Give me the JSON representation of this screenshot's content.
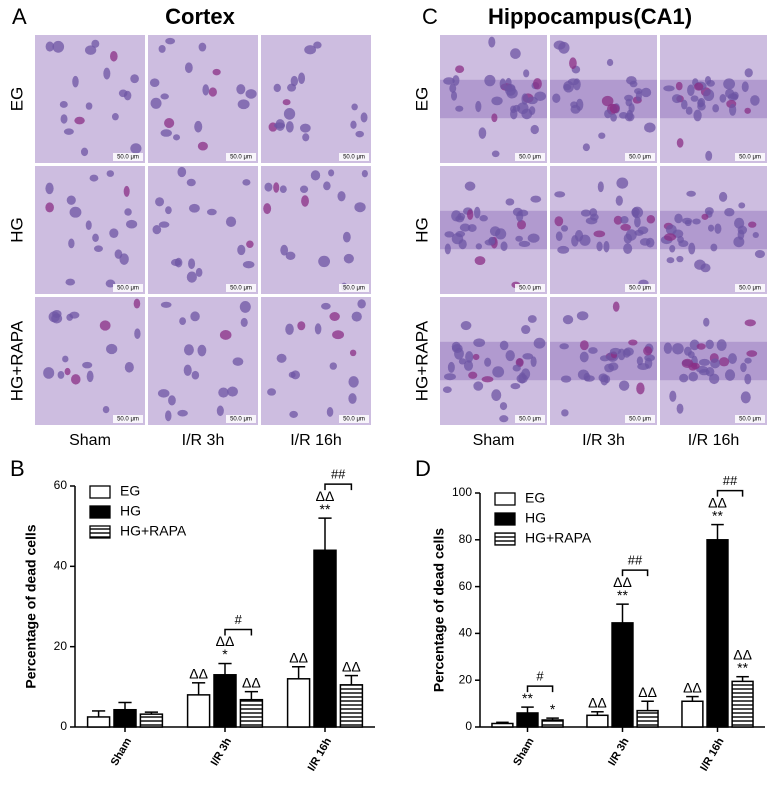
{
  "micrographs": [
    {
      "letter": "A",
      "title": "Cortex",
      "rows": [
        "EG",
        "HG",
        "HG+RAPA"
      ],
      "columns": [
        "Sham",
        "I/R 3h",
        "I/R 16h"
      ],
      "scale_bar": "50.0 μm"
    },
    {
      "letter": "C",
      "title": "Hippocampus(CA1)",
      "rows": [
        "EG",
        "HG",
        "HG+RAPA"
      ],
      "columns": [
        "Sham",
        "I/R 3h",
        "I/R 16h"
      ],
      "scale_bar": "50.0 μm"
    }
  ],
  "chart_data": [
    {
      "type": "bar",
      "panel_label": "B",
      "ylabel": "Percentage of dead cells",
      "categories": [
        "Sham",
        "I/R 3h",
        "I/R 16h"
      ],
      "series": [
        {
          "name": "EG",
          "color": "#ffffff",
          "pattern": "solid",
          "values": [
            2.5,
            8,
            12
          ],
          "errors": [
            1.5,
            3,
            3
          ],
          "annotations": [
            [],
            [
              "ΔΔ"
            ],
            [
              "ΔΔ"
            ]
          ]
        },
        {
          "name": "HG",
          "color": "#000000",
          "pattern": "solid",
          "values": [
            4.3,
            13,
            44
          ],
          "errors": [
            1.8,
            2.8,
            8
          ],
          "annotations": [
            [],
            [
              "ΔΔ",
              "*"
            ],
            [
              "ΔΔ",
              "**"
            ]
          ]
        },
        {
          "name": "HG+RAPA",
          "color": "#ffffff",
          "pattern": "horizontal-lines",
          "values": [
            3.2,
            6.8,
            10.5
          ],
          "errors": [
            0.5,
            2,
            2.3
          ],
          "annotations": [
            [],
            [
              "ΔΔ"
            ],
            [
              "ΔΔ"
            ]
          ]
        }
      ],
      "brackets": [
        null,
        "#",
        "##"
      ],
      "ylim": [
        0,
        60
      ],
      "yticks": [
        0,
        20,
        40,
        60
      ],
      "grid": false,
      "legend": "upper left"
    },
    {
      "type": "bar",
      "panel_label": "D",
      "ylabel": "Percentage of dead cells",
      "categories": [
        "Sham",
        "I/R 3h",
        "I/R 16h"
      ],
      "series": [
        {
          "name": "EG",
          "color": "#ffffff",
          "pattern": "solid",
          "values": [
            1.5,
            5,
            11
          ],
          "errors": [
            0.5,
            1.5,
            2
          ],
          "annotations": [
            [],
            [
              "ΔΔ"
            ],
            [
              "ΔΔ"
            ]
          ]
        },
        {
          "name": "HG",
          "color": "#000000",
          "pattern": "solid",
          "values": [
            6,
            44.5,
            80
          ],
          "errors": [
            2.5,
            8,
            6.5
          ],
          "annotations": [
            [
              "**"
            ],
            [
              "ΔΔ",
              "**"
            ],
            [
              "ΔΔ",
              "**"
            ]
          ]
        },
        {
          "name": "HG+RAPA",
          "color": "#ffffff",
          "pattern": "horizontal-lines",
          "values": [
            3,
            7,
            19.5
          ],
          "errors": [
            0.8,
            4,
            2
          ],
          "annotations": [
            [
              "*"
            ],
            [
              "ΔΔ"
            ],
            [
              "ΔΔ",
              "**"
            ]
          ]
        }
      ],
      "brackets": [
        "#",
        "##",
        "##"
      ],
      "ylim": [
        0,
        100
      ],
      "yticks": [
        0,
        20,
        40,
        60,
        80,
        100
      ],
      "grid": false,
      "legend": "upper left"
    }
  ]
}
